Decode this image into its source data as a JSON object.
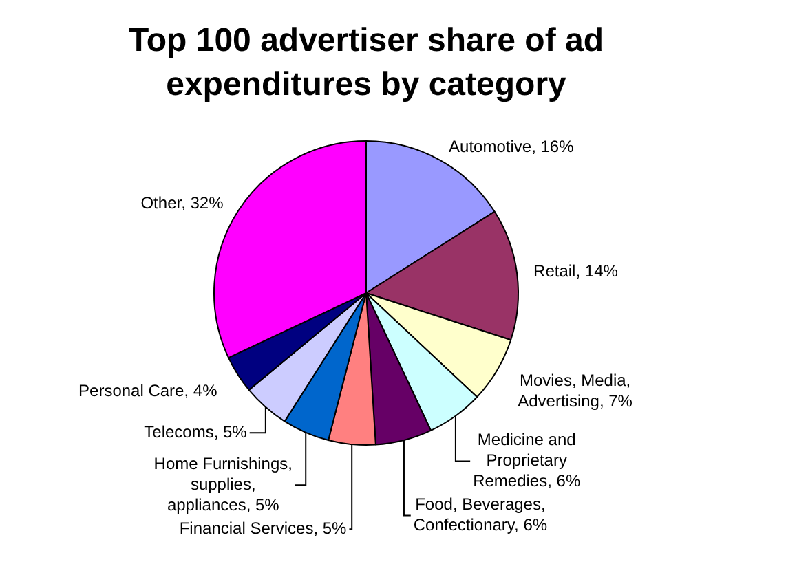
{
  "chart_data": {
    "type": "pie",
    "title": "Top 100 advertiser share of ad expenditures by category",
    "categories": [
      "Automotive",
      "Retail",
      "Movies, Media, Advertising",
      "Medicine and Proprietary Remedies",
      "Food, Beverages, Confectionary",
      "Financial Services",
      "Home Furnishings, supplies, appliances",
      "Telecoms",
      "Personal Care",
      "Other"
    ],
    "values": [
      16,
      14,
      7,
      6,
      6,
      5,
      5,
      5,
      4,
      32
    ],
    "value_labels": [
      "16%",
      "14%",
      "7%",
      "6%",
      "6%",
      "5%",
      "5%",
      "5%",
      "4%",
      "32%"
    ],
    "colors": [
      "#9999ff",
      "#993366",
      "#ffffcc",
      "#ccffff",
      "#660066",
      "#ff8080",
      "#0066cc",
      "#ccccff",
      "#000080",
      "#ff00ff"
    ],
    "legend": false
  }
}
